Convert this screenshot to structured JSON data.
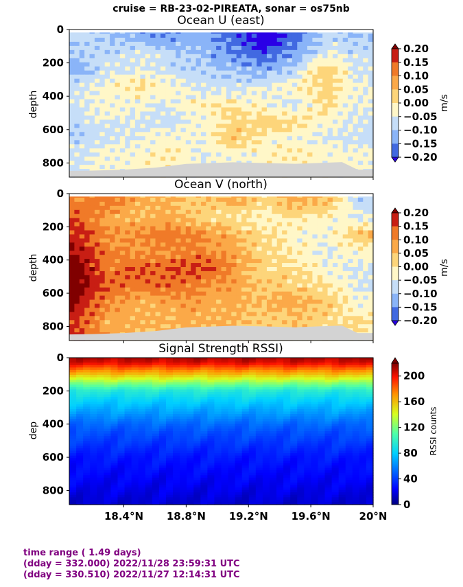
{
  "suptitle": "cruise = RB-23-02-PIREATA,  sonar = os75nb",
  "footer": {
    "line1": "time range ( 1.49 days)",
    "line2": "(dday = 332.000) 2022/11/28 23:59:31 UTC",
    "line3": "(dday = 330.510) 2022/11/27 12:14:31 UTC"
  },
  "colors": {
    "diverging": [
      "#2a00e6",
      "#4169e1",
      "#8ab4f8",
      "#c6def8",
      "#fff7c8",
      "#fdd57a",
      "#fba948",
      "#f07a28",
      "#c81e14",
      "#800000"
    ],
    "terrain": "#d3d3d3",
    "footer_text": "#800080"
  },
  "chart_data": [
    {
      "type": "heatmap",
      "title": "Ocean U (east)",
      "ylabel": "depth",
      "xlabel": "",
      "xlim": [
        18.05,
        20.0
      ],
      "ylim": [
        885,
        0
      ],
      "yticks": [
        0,
        200,
        400,
        600,
        800
      ],
      "xticks": [
        18.4,
        18.8,
        19.2,
        19.6,
        20.0
      ],
      "colorbar": {
        "label": "m/s",
        "ticks": [
          "0.20",
          "0.15",
          "0.10",
          "0.05",
          "0.00",
          "−0.05",
          "−0.10",
          "−0.15",
          "−0.20"
        ],
        "range": [
          -0.2,
          0.2
        ]
      },
      "x_centers": [
        18.1,
        18.3,
        18.5,
        18.7,
        18.9,
        19.1,
        19.3,
        19.5,
        19.7,
        19.9
      ],
      "depth_centers": [
        50,
        150,
        250,
        350,
        450,
        550,
        650,
        750
      ],
      "values": [
        [
          -0.06,
          -0.08,
          -0.1,
          -0.12,
          -0.1,
          -0.14,
          -0.19,
          -0.14,
          -0.06,
          -0.08
        ],
        [
          -0.08,
          -0.06,
          -0.04,
          -0.07,
          -0.09,
          -0.12,
          -0.15,
          -0.1,
          -0.04,
          -0.06
        ],
        [
          -0.1,
          -0.05,
          -0.03,
          -0.06,
          -0.07,
          -0.08,
          -0.1,
          -0.06,
          0.03,
          -0.05
        ],
        [
          -0.04,
          -0.03,
          0.01,
          -0.02,
          -0.05,
          -0.06,
          -0.04,
          -0.02,
          0.02,
          -0.03
        ],
        [
          -0.05,
          -0.02,
          -0.03,
          -0.04,
          -0.01,
          0.0,
          -0.03,
          -0.05,
          0.01,
          -0.04
        ],
        [
          -0.06,
          -0.04,
          -0.05,
          -0.06,
          -0.03,
          0.01,
          0.02,
          0.01,
          -0.02,
          -0.05
        ],
        [
          -0.07,
          -0.05,
          -0.04,
          -0.02,
          -0.03,
          0.03,
          -0.01,
          -0.03,
          -0.04,
          -0.06
        ],
        [
          -0.05,
          -0.03,
          -0.02,
          -0.01,
          -0.04,
          -0.03,
          -0.02,
          -0.01,
          -0.02,
          -0.03
        ]
      ]
    },
    {
      "type": "heatmap",
      "title": "Ocean V (north)",
      "ylabel": "depth",
      "xlabel": "",
      "xlim": [
        18.05,
        20.0
      ],
      "ylim": [
        885,
        0
      ],
      "yticks": [
        0,
        200,
        400,
        600,
        800
      ],
      "xticks": [
        18.4,
        18.8,
        19.2,
        19.6,
        20.0
      ],
      "colorbar": {
        "label": "m/s",
        "ticks": [
          "0.20",
          "0.15",
          "0.10",
          "0.05",
          "0.00",
          "−0.05",
          "−0.10",
          "−0.15",
          "−0.20"
        ],
        "range": [
          -0.2,
          0.2
        ]
      },
      "x_centers": [
        18.1,
        18.3,
        18.5,
        18.7,
        18.9,
        19.1,
        19.3,
        19.5,
        19.7,
        19.9
      ],
      "depth_centers": [
        50,
        150,
        250,
        350,
        450,
        550,
        650,
        750
      ],
      "values": [
        [
          0.08,
          0.1,
          0.06,
          0.04,
          0.03,
          0.05,
          0.02,
          0.06,
          0.04,
          -0.06
        ],
        [
          0.12,
          0.06,
          0.04,
          0.06,
          0.02,
          0.0,
          -0.03,
          0.0,
          -0.02,
          -0.04
        ],
        [
          0.14,
          0.08,
          0.09,
          0.11,
          0.08,
          0.05,
          0.01,
          -0.02,
          -0.03,
          0.04
        ],
        [
          0.16,
          0.09,
          0.07,
          0.08,
          0.09,
          0.06,
          0.02,
          -0.01,
          -0.04,
          -0.02
        ],
        [
          0.18,
          0.1,
          0.12,
          0.12,
          0.13,
          0.08,
          0.01,
          0.01,
          -0.03,
          -0.05
        ],
        [
          0.19,
          0.11,
          0.1,
          0.11,
          0.09,
          0.06,
          0.03,
          0.02,
          0.0,
          -0.04
        ],
        [
          0.17,
          0.08,
          0.06,
          0.07,
          0.06,
          0.05,
          0.04,
          0.06,
          0.03,
          -0.03
        ],
        [
          0.13,
          0.06,
          0.05,
          0.05,
          0.05,
          0.04,
          0.03,
          0.04,
          0.02,
          0.0
        ]
      ]
    },
    {
      "type": "heatmap",
      "title": "Signal Strength RSSI)",
      "ylabel": "dep",
      "xlabel": "",
      "xlim": [
        18.05,
        20.0
      ],
      "ylim": [
        885,
        0
      ],
      "yticks": [
        0,
        200,
        400,
        600,
        800
      ],
      "xticks": [
        18.4,
        18.8,
        19.2,
        19.6,
        20.0
      ],
      "xtick_labels": [
        "18.4°N",
        "18.8°N",
        "19.2°N",
        "19.6°N",
        "20°N"
      ],
      "colorbar": {
        "label": "RSSI counts",
        "ticks": [
          "200",
          "160",
          "120",
          "80",
          "40",
          "0"
        ],
        "range": [
          0,
          220
        ]
      },
      "depth_profile": [
        [
          0,
          212
        ],
        [
          30,
          205
        ],
        [
          60,
          185
        ],
        [
          100,
          160
        ],
        [
          150,
          125
        ],
        [
          200,
          95
        ],
        [
          250,
          82
        ],
        [
          300,
          72
        ],
        [
          350,
          62
        ],
        [
          400,
          52
        ],
        [
          450,
          45
        ],
        [
          500,
          40
        ],
        [
          550,
          35
        ],
        [
          600,
          30
        ],
        [
          700,
          25
        ],
        [
          800,
          20
        ],
        [
          885,
          15
        ]
      ]
    }
  ]
}
